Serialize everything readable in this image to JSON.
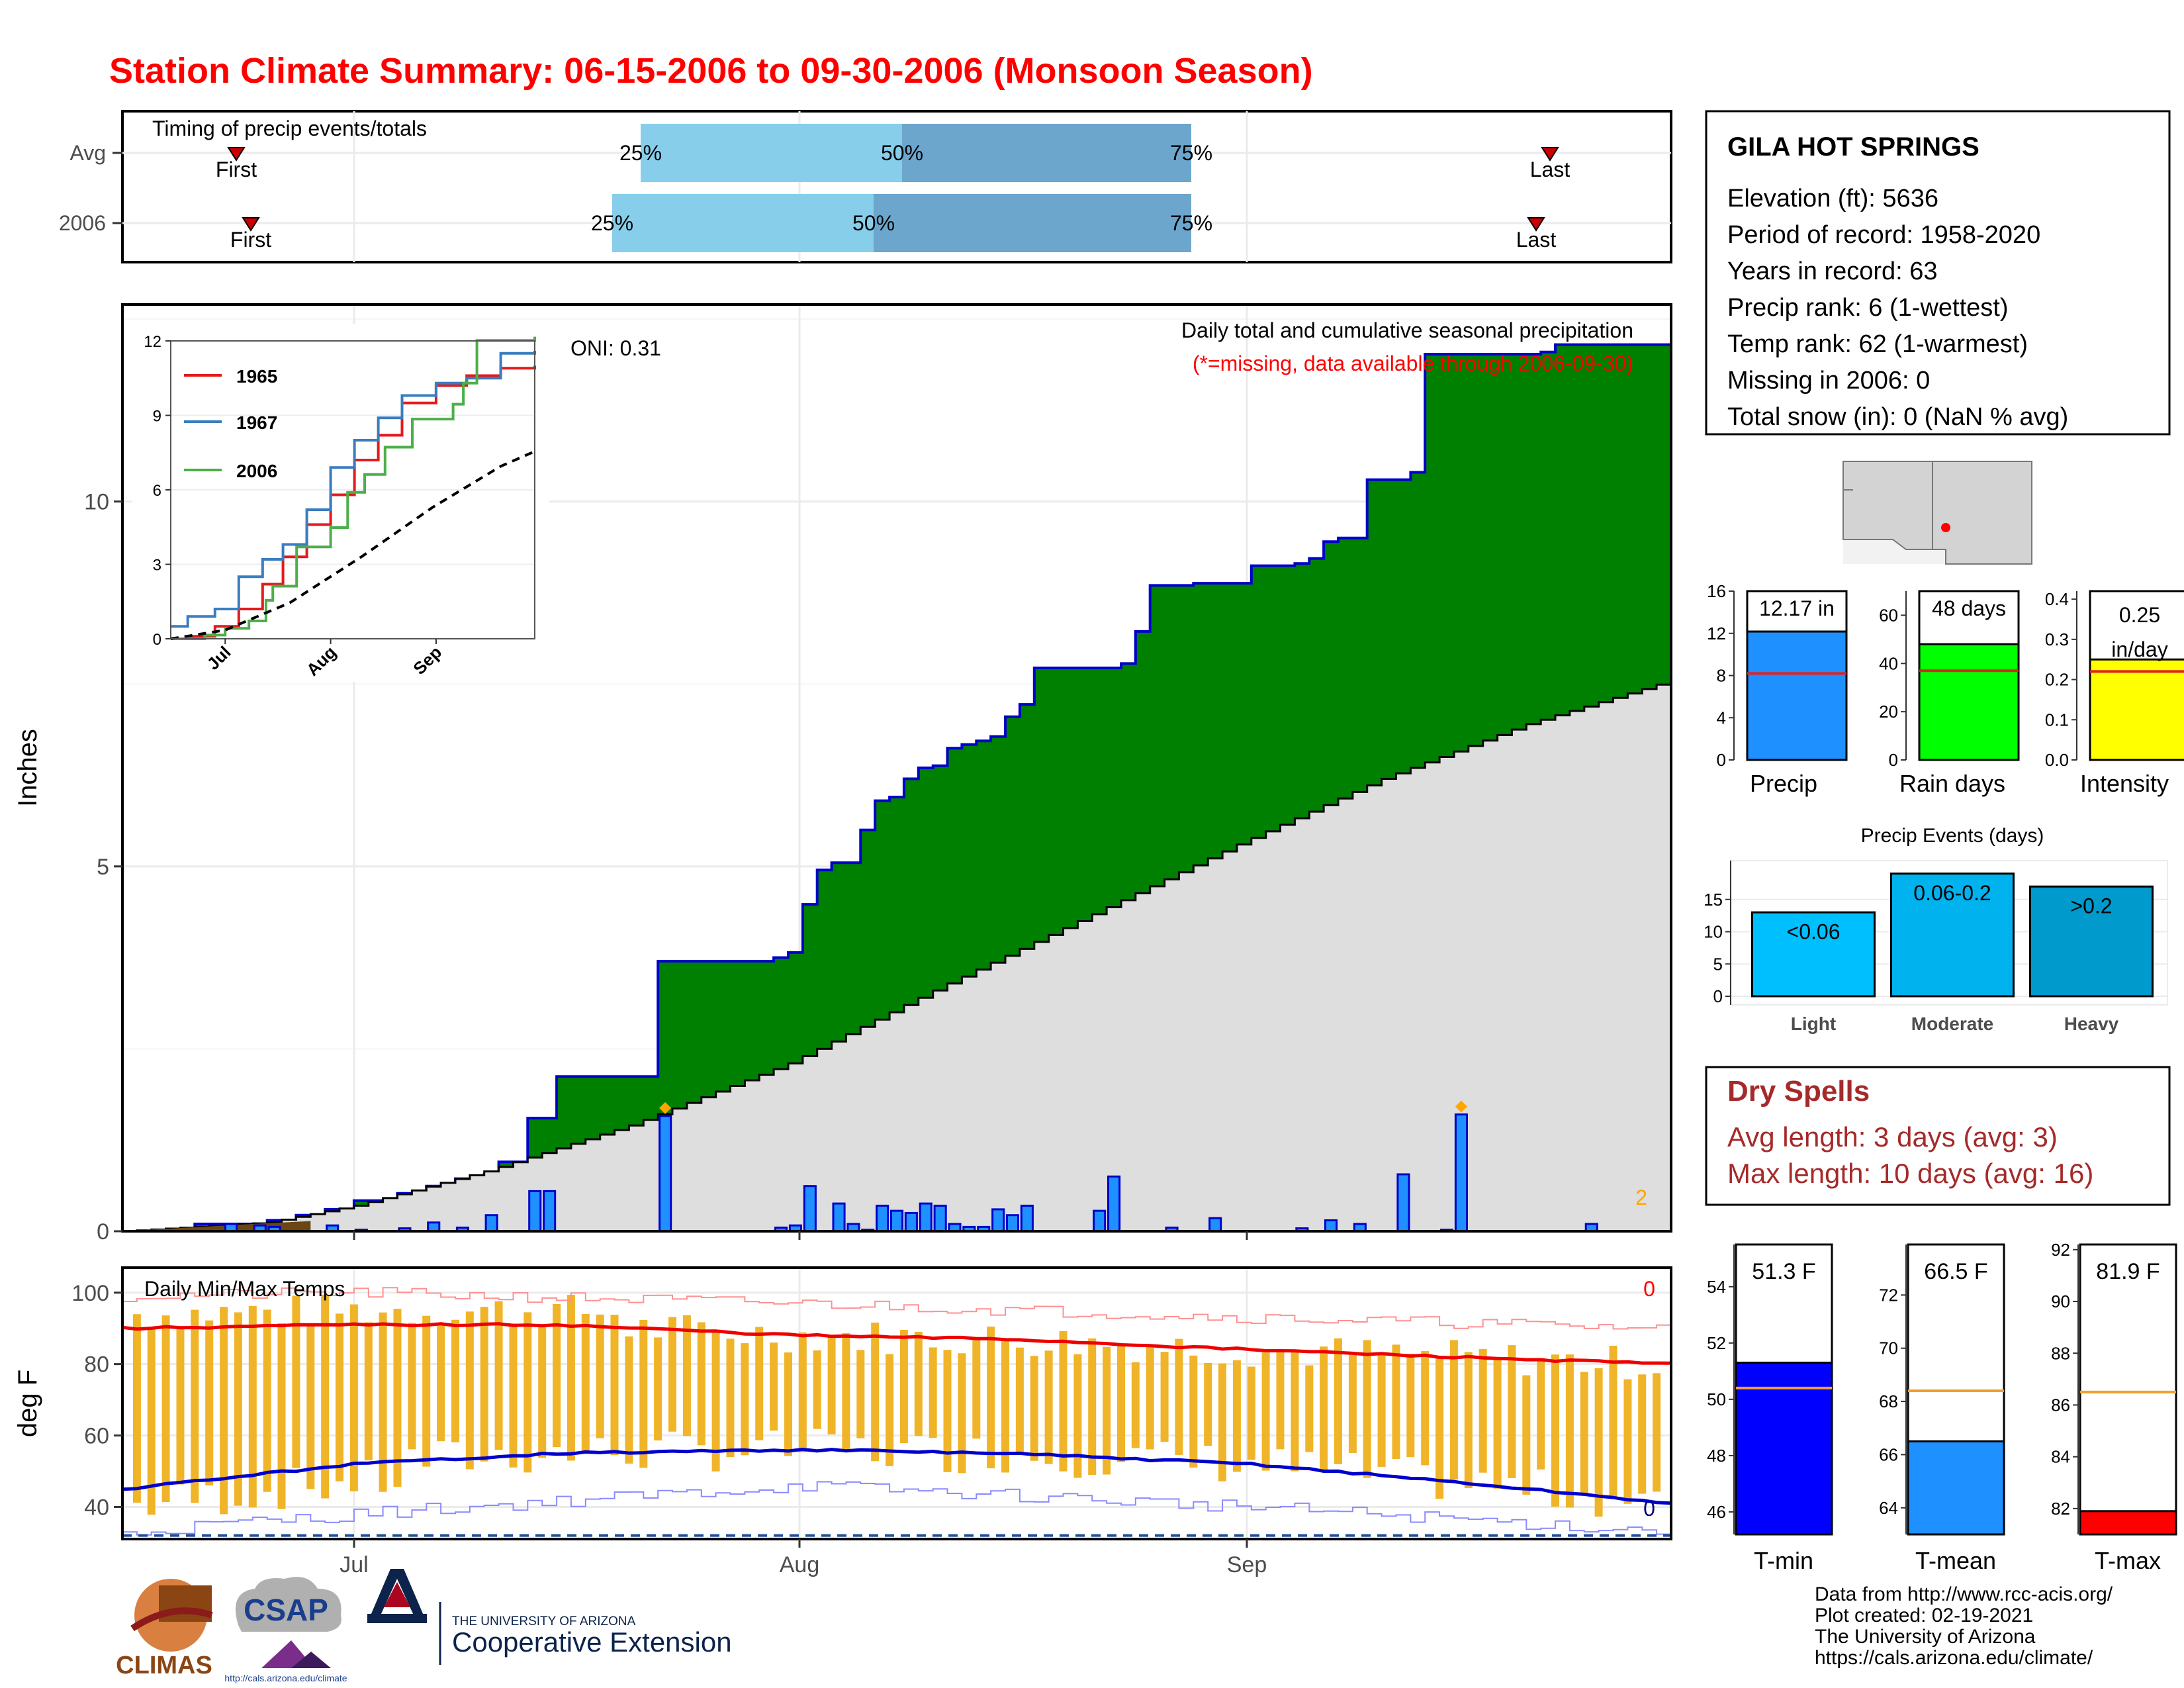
{
  "title": "Station Climate Summary: 06-15-2006 to 09-30-2006 (Monsoon Season)",
  "station": {
    "name": "GILA HOT SPRINGS",
    "lines": [
      "Elevation (ft): 5636",
      "Period of record: 1958-2020",
      "Years in record: 63",
      "Precip rank: 6 (1-wettest)",
      "Temp rank: 62 (1-warmest)",
      "Missing in 2006: 0",
      "Total snow (in): 0 (NaN % avg)"
    ]
  },
  "timing": {
    "title": "Timing of precip events/totals",
    "rows": [
      {
        "label": "Avg",
        "first": "First",
        "last": "Last",
        "q25": "25%",
        "q50": "50%",
        "q75": "75%"
      },
      {
        "label": "2006",
        "first": "First",
        "last": "Last",
        "q25": "25%",
        "q50": "50%",
        "q75": "75%"
      }
    ]
  },
  "main": {
    "oni": "ONI: 0.31",
    "caption": "Daily total and cumulative seasonal precipitation",
    "missing_note": "(*=missing, data available through 2006-09-30)",
    "ylabel": "Inches",
    "yticks": [
      "0",
      "5",
      "10"
    ],
    "count_label": "2"
  },
  "inset": {
    "yticks": [
      "0",
      "3",
      "6",
      "9",
      "12"
    ],
    "xticks": [
      "Jul",
      "Aug",
      "Sep"
    ],
    "legend": [
      {
        "name": "1965",
        "color": "#e31a1c"
      },
      {
        "name": "1967",
        "color": "#3a7dbf"
      },
      {
        "name": "2006",
        "color": "#4daf4a"
      }
    ]
  },
  "temps": {
    "title": "Daily Min/Max Temps",
    "ylabel": "deg F",
    "yticks": [
      "40",
      "60",
      "80",
      "100"
    ],
    "count_hi": "0",
    "count_lo": "0",
    "xticks": [
      "Jul",
      "Aug",
      "Sep"
    ]
  },
  "summary_bars": [
    {
      "label": "Precip",
      "value_text": "12.17 in",
      "color": "#1e90ff",
      "yticks": [
        "0",
        "4",
        "8",
        "12",
        "16"
      ],
      "ymax": 16,
      "value": 12.17,
      "avg": 8.2
    },
    {
      "label": "Rain days",
      "value_text": "48 days",
      "color": "#00ff00",
      "yticks": [
        "0",
        "20",
        "40",
        "60"
      ],
      "ymax": 70,
      "value": 48,
      "avg": 37
    },
    {
      "label": "Intensity",
      "value_text_1": "0.25",
      "value_text_2": "in/day",
      "color": "#ffff00",
      "yticks": [
        "0.0",
        "0.1",
        "0.2",
        "0.3",
        "0.4"
      ],
      "ymax": 0.42,
      "value": 0.25,
      "avg": 0.22
    }
  ],
  "precip_events": {
    "title": "Precip Events (days)",
    "yticks": [
      "0",
      "5",
      "10",
      "15"
    ],
    "bars": [
      {
        "cat": "Light",
        "label": "<0.06",
        "value": 13,
        "color": "#00bfff"
      },
      {
        "cat": "Moderate",
        "label": "0.06-0.2",
        "value": 19,
        "color": "#00b2ee"
      },
      {
        "cat": "Heavy",
        "label": ">0.2",
        "value": 17,
        "color": "#009acd"
      }
    ]
  },
  "dry_spells": {
    "title": "Dry Spells",
    "avg_line": "Avg length: 3 days (avg: 3)",
    "max_line": "Max length: 10 days (avg: 16)"
  },
  "temp_bars": [
    {
      "label": "T-min",
      "value_text": "51.3 F",
      "color": "#0000ff",
      "yticks": [
        "46",
        "48",
        "50",
        "52",
        "54"
      ],
      "ymin": 45.2,
      "ymax": 55.5,
      "value": 51.3,
      "avg": 50.4
    },
    {
      "label": "T-mean",
      "value_text": "66.5 F",
      "color": "#1e90ff",
      "yticks": [
        "64",
        "66",
        "68",
        "70",
        "72"
      ],
      "ymin": 63.0,
      "ymax": 73.9,
      "value": 66.5,
      "avg": 68.4
    },
    {
      "label": "T-max",
      "value_text": "81.9 F",
      "color": "#ff0000",
      "yticks": [
        "82",
        "84",
        "86",
        "88",
        "90",
        "92"
      ],
      "ymin": 81.0,
      "ymax": 92.2,
      "value": 81.9,
      "avg": 86.5
    }
  ],
  "footer": {
    "source_lines": [
      "Data from http://www.rcc-acis.org/",
      "Plot created: 02-19-2021",
      "The University of Arizona",
      "https://cals.arizona.edu/climate/"
    ],
    "logos": {
      "climas": "CLIMAS",
      "csap": "CSAP",
      "csap_url": "http://cals.arizona.edu/climate",
      "ua_small": "THE UNIVERSITY OF ARIZONA",
      "ua_big": "Cooperative Extension"
    }
  },
  "chart_data": [
    {
      "type": "area",
      "title": "Daily total and cumulative seasonal precipitation",
      "ylabel": "Inches",
      "x_range": [
        "2006-06-15",
        "2006-09-30"
      ],
      "ylim": [
        0,
        12.7
      ],
      "series": [
        {
          "name": "2006",
          "points": [
            [
              "2006-06-15",
              0
            ],
            [
              "2006-06-20",
              0.1
            ],
            [
              "2006-06-25",
              0.15
            ],
            [
              "2006-06-27",
              0.22
            ],
            [
              "2006-06-29",
              0.3
            ],
            [
              "2006-07-01",
              0.42
            ],
            [
              "2006-07-04",
              0.52
            ],
            [
              "2006-07-06",
              0.62
            ],
            [
              "2006-07-08",
              0.72
            ],
            [
              "2006-07-10",
              0.78
            ],
            [
              "2006-07-11",
              0.95
            ],
            [
              "2006-07-13",
              1.55
            ],
            [
              "2006-07-15",
              2.12
            ],
            [
              "2006-07-21",
              2.12
            ],
            [
              "2006-07-22",
              3.7
            ],
            [
              "2006-07-29",
              3.7
            ],
            [
              "2006-07-30",
              3.75
            ],
            [
              "2006-07-31",
              3.82
            ],
            [
              "2006-08-01",
              4.48
            ],
            [
              "2006-08-02",
              4.95
            ],
            [
              "2006-08-03",
              5.05
            ],
            [
              "2006-08-05",
              5.5
            ],
            [
              "2006-08-06",
              5.9
            ],
            [
              "2006-08-07",
              5.95
            ],
            [
              "2006-08-08",
              6.2
            ],
            [
              "2006-08-09",
              6.35
            ],
            [
              "2006-08-10",
              6.38
            ],
            [
              "2006-08-11",
              6.62
            ],
            [
              "2006-08-12",
              6.67
            ],
            [
              "2006-08-13",
              6.72
            ],
            [
              "2006-08-14",
              6.78
            ],
            [
              "2006-08-15",
              7.05
            ],
            [
              "2006-08-16",
              7.22
            ],
            [
              "2006-08-17",
              7.72
            ],
            [
              "2006-08-22",
              7.72
            ],
            [
              "2006-08-23",
              7.78
            ],
            [
              "2006-08-24",
              8.22
            ],
            [
              "2006-08-25",
              8.85
            ],
            [
              "2006-08-28",
              8.88
            ],
            [
              "2006-09-01",
              9.12
            ],
            [
              "2006-09-04",
              9.15
            ],
            [
              "2006-09-05",
              9.22
            ],
            [
              "2006-09-06",
              9.45
            ],
            [
              "2006-09-07",
              9.5
            ],
            [
              "2006-09-09",
              10.3
            ],
            [
              "2006-09-12",
              10.4
            ],
            [
              "2006-09-13",
              12.02
            ],
            [
              "2006-09-21",
              12.05
            ],
            [
              "2006-09-22",
              12.15
            ],
            [
              "2006-09-30",
              12.17
            ]
          ]
        },
        {
          "name": "Avg",
          "points": [
            [
              "2006-06-15",
              0
            ],
            [
              "2006-06-25",
              0.12
            ],
            [
              "2006-07-01",
              0.35
            ],
            [
              "2006-07-10",
              0.82
            ],
            [
              "2006-07-20",
              1.45
            ],
            [
              "2006-07-31",
              2.3
            ],
            [
              "2006-08-10",
              3.3
            ],
            [
              "2006-08-20",
              4.25
            ],
            [
              "2006-08-31",
              5.3
            ],
            [
              "2006-09-10",
              6.2
            ],
            [
              "2006-09-20",
              6.95
            ],
            [
              "2006-09-30",
              7.55
            ]
          ]
        }
      ],
      "daily_precip": [
        [
          "2006-06-22",
          0.1
        ],
        [
          "2006-06-24",
          0.08
        ],
        [
          "2006-06-25",
          0.06
        ],
        [
          "2006-06-29",
          0.08
        ],
        [
          "2006-07-01",
          0.02
        ],
        [
          "2006-07-04",
          0.04
        ],
        [
          "2006-07-06",
          0.12
        ],
        [
          "2006-07-08",
          0.05
        ],
        [
          "2006-07-10",
          0.22
        ],
        [
          "2006-07-13",
          0.55
        ],
        [
          "2006-07-14",
          0.55
        ],
        [
          "2006-07-22",
          1.58
        ],
        [
          "2006-07-30",
          0.05
        ],
        [
          "2006-07-31",
          0.08
        ],
        [
          "2006-08-01",
          0.62
        ],
        [
          "2006-08-03",
          0.38
        ],
        [
          "2006-08-04",
          0.1
        ],
        [
          "2006-08-05",
          0.02
        ],
        [
          "2006-08-06",
          0.35
        ],
        [
          "2006-08-07",
          0.28
        ],
        [
          "2006-08-08",
          0.25
        ],
        [
          "2006-08-09",
          0.38
        ],
        [
          "2006-08-10",
          0.35
        ],
        [
          "2006-08-11",
          0.1
        ],
        [
          "2006-08-12",
          0.06
        ],
        [
          "2006-08-13",
          0.06
        ],
        [
          "2006-08-14",
          0.3
        ],
        [
          "2006-08-15",
          0.22
        ],
        [
          "2006-08-16",
          0.35
        ],
        [
          "2006-08-21",
          0.28
        ],
        [
          "2006-08-22",
          0.75
        ],
        [
          "2006-08-26",
          0.05
        ],
        [
          "2006-08-29",
          0.18
        ],
        [
          "2006-09-04",
          0.04
        ],
        [
          "2006-09-06",
          0.15
        ],
        [
          "2006-09-08",
          0.1
        ],
        [
          "2006-09-11",
          0.78
        ],
        [
          "2006-09-14",
          0.02
        ],
        [
          "2006-09-15",
          1.6
        ],
        [
          "2006-09-24",
          0.1
        ]
      ]
    },
    {
      "type": "line",
      "title": "",
      "ylim": [
        0,
        12
      ],
      "x_range": [
        "2006-06-15",
        "2006-09-30"
      ],
      "series": [
        {
          "name": "1965",
          "points": [
            [
              "2006-06-15",
              0
            ],
            [
              "2006-06-20",
              0.1
            ],
            [
              "2006-06-28",
              0.5
            ],
            [
              "2006-07-05",
              1.2
            ],
            [
              "2006-07-12",
              2.2
            ],
            [
              "2006-07-18",
              3.3
            ],
            [
              "2006-07-25",
              4.6
            ],
            [
              "2006-08-01",
              5.8
            ],
            [
              "2006-08-08",
              7.2
            ],
            [
              "2006-08-15",
              8.2
            ],
            [
              "2006-08-22",
              9.5
            ],
            [
              "2006-09-01",
              10.2
            ],
            [
              "2006-09-10",
              10.6
            ],
            [
              "2006-09-20",
              10.9
            ],
            [
              "2006-09-30",
              11.0
            ]
          ]
        },
        {
          "name": "1967",
          "points": [
            [
              "2006-06-15",
              0.5
            ],
            [
              "2006-06-20",
              0.9
            ],
            [
              "2006-06-28",
              1.2
            ],
            [
              "2006-07-05",
              2.5
            ],
            [
              "2006-07-12",
              3.2
            ],
            [
              "2006-07-18",
              3.8
            ],
            [
              "2006-07-25",
              5.2
            ],
            [
              "2006-08-01",
              6.9
            ],
            [
              "2006-08-08",
              8.0
            ],
            [
              "2006-08-15",
              8.9
            ],
            [
              "2006-08-22",
              9.8
            ],
            [
              "2006-09-01",
              10.3
            ],
            [
              "2006-09-10",
              10.5
            ],
            [
              "2006-09-20",
              11.5
            ],
            [
              "2006-09-30",
              11.6
            ]
          ]
        },
        {
          "name": "2006",
          "points": [
            [
              "2006-06-15",
              0
            ],
            [
              "2006-06-25",
              0.15
            ],
            [
              "2006-07-01",
              0.42
            ],
            [
              "2006-07-08",
              0.72
            ],
            [
              "2006-07-13",
              1.55
            ],
            [
              "2006-07-15",
              2.12
            ],
            [
              "2006-07-22",
              3.7
            ],
            [
              "2006-08-01",
              4.48
            ],
            [
              "2006-08-06",
              5.9
            ],
            [
              "2006-08-11",
              6.62
            ],
            [
              "2006-08-17",
              7.72
            ],
            [
              "2006-08-25",
              8.85
            ],
            [
              "2006-09-06",
              9.45
            ],
            [
              "2006-09-09",
              10.3
            ],
            [
              "2006-09-13",
              12.02
            ],
            [
              "2006-09-30",
              12.17
            ]
          ]
        },
        {
          "name": "Avg",
          "points": [
            [
              "2006-06-15",
              0
            ],
            [
              "2006-07-01",
              0.35
            ],
            [
              "2006-07-20",
              1.45
            ],
            [
              "2006-08-10",
              3.3
            ],
            [
              "2006-08-31",
              5.3
            ],
            [
              "2006-09-20",
              6.95
            ],
            [
              "2006-09-30",
              7.55
            ]
          ]
        }
      ]
    },
    {
      "type": "line",
      "title": "Daily Min/Max Temps",
      "ylabel": "deg F",
      "ylim": [
        31,
        107
      ],
      "x_range": [
        "2006-06-15",
        "2006-09-30"
      ],
      "series": [
        {
          "name": "Avg max",
          "points": [
            [
              "2006-06-15",
              90
            ],
            [
              "2006-07-01",
              91
            ],
            [
              "2006-07-15",
              91
            ],
            [
              "2006-08-01",
              88
            ],
            [
              "2006-08-15",
              87
            ],
            [
              "2006-09-01",
              84
            ],
            [
              "2006-09-15",
              82
            ],
            [
              "2006-09-30",
              80
            ]
          ]
        },
        {
          "name": "Avg min",
          "points": [
            [
              "2006-06-15",
              45
            ],
            [
              "2006-07-01",
              52
            ],
            [
              "2006-07-15",
              55
            ],
            [
              "2006-08-01",
              56
            ],
            [
              "2006-08-15",
              55
            ],
            [
              "2006-09-01",
              52
            ],
            [
              "2006-09-15",
              47
            ],
            [
              "2006-09-30",
              41
            ]
          ]
        },
        {
          "name": "Record max",
          "points": [
            [
              "2006-06-15",
              99
            ],
            [
              "2006-07-01",
              100
            ],
            [
              "2006-08-01",
              97
            ],
            [
              "2006-09-01",
              93
            ],
            [
              "2006-09-30",
              90
            ]
          ]
        },
        {
          "name": "Record min",
          "points": [
            [
              "2006-06-15",
              33
            ],
            [
              "2006-07-01",
              38
            ],
            [
              "2006-08-01",
              46
            ],
            [
              "2006-09-01",
              40
            ],
            [
              "2006-09-30",
              33
            ]
          ]
        }
      ],
      "daily_range_bars": "2006 daily min-max range (orange bars), roughly 45-98 F in June-July narrowing to 55-85 F in August"
    }
  ]
}
